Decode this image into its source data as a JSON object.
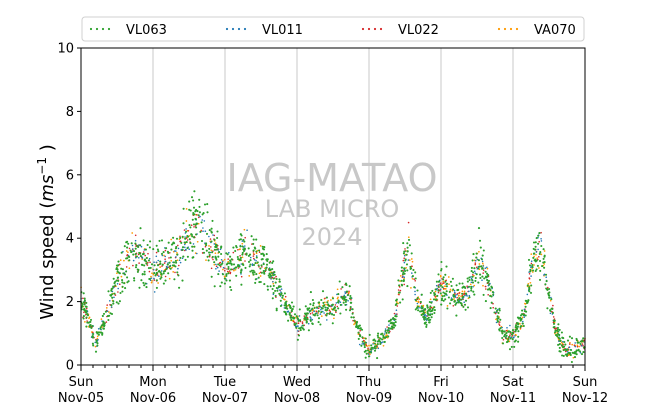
{
  "chart_data": {
    "type": "scatter",
    "ylabel": "Wind speed",
    "ylabel_unit": "ms",
    "ylabel_unit_exp": "−1",
    "ylim": [
      0,
      10
    ],
    "yticks": [
      "0",
      "2",
      "4",
      "6",
      "8",
      "10"
    ],
    "xlim": [
      "2023-11-05",
      "2023-11-12"
    ],
    "xticks": [
      {
        "day": "Sun",
        "date": "Nov-05"
      },
      {
        "day": "Mon",
        "date": "Nov-06"
      },
      {
        "day": "Tue",
        "date": "Nov-07"
      },
      {
        "day": "Wed",
        "date": "Nov-08"
      },
      {
        "day": "Thu",
        "date": "Nov-09"
      },
      {
        "day": "Fri",
        "date": "Nov-10"
      },
      {
        "day": "Sat",
        "date": "Nov-11"
      },
      {
        "day": "Sun",
        "date": "Nov-12"
      }
    ],
    "grid": "vertical",
    "legend_position": "top",
    "series": [
      {
        "name": "VL063",
        "color": "#2ca02c"
      },
      {
        "name": "VL011",
        "color": "#1f77b4"
      },
      {
        "name": "VL022",
        "color": "#d62728"
      },
      {
        "name": "VA070",
        "color": "#ff9900"
      }
    ],
    "profile_days_since_start": [
      0,
      0.1,
      0.2,
      0.3,
      0.5,
      0.7,
      1.0,
      1.3,
      1.6,
      2.0,
      2.3,
      2.6,
      3.0,
      3.2,
      3.5,
      3.7,
      3.85,
      4.0,
      4.15,
      4.35,
      4.55,
      4.65,
      4.8,
      5.0,
      5.2,
      5.35,
      5.55,
      5.7,
      5.85,
      6.0,
      6.15,
      6.3,
      6.4,
      6.6,
      6.75,
      6.9,
      7.0
    ],
    "profile_mean_wind_speed": [
      2.0,
      1.5,
      0.7,
      1.3,
      2.6,
      3.6,
      3.0,
      3.3,
      4.4,
      3.0,
      3.6,
      3.0,
      1.2,
      1.7,
      1.8,
      2.3,
      1.0,
      0.5,
      0.7,
      1.4,
      3.8,
      2.2,
      1.5,
      2.6,
      2.1,
      2.2,
      3.4,
      2.2,
      1.0,
      0.9,
      1.5,
      3.6,
      3.5,
      1.0,
      0.4,
      0.6,
      0.7
    ],
    "watermark": {
      "line1": "IAG-MATAO",
      "line2": "LAB MICRO",
      "line3": "2024"
    }
  }
}
